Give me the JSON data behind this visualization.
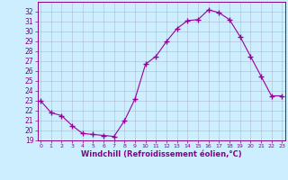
{
  "x": [
    0,
    1,
    2,
    3,
    4,
    5,
    6,
    7,
    8,
    9,
    10,
    11,
    12,
    13,
    14,
    15,
    16,
    17,
    18,
    19,
    20,
    21,
    22,
    23
  ],
  "y": [
    23.0,
    21.8,
    21.5,
    20.5,
    19.7,
    19.6,
    19.5,
    19.4,
    21.0,
    23.2,
    26.7,
    27.5,
    29.0,
    30.3,
    31.1,
    31.2,
    32.2,
    31.9,
    31.2,
    29.5,
    27.5,
    25.5,
    23.5,
    23.5
  ],
  "ylim": [
    19,
    33
  ],
  "yticks": [
    19,
    20,
    21,
    22,
    23,
    24,
    25,
    26,
    27,
    28,
    29,
    30,
    31,
    32
  ],
  "xticks": [
    0,
    1,
    2,
    3,
    4,
    5,
    6,
    7,
    8,
    9,
    10,
    11,
    12,
    13,
    14,
    15,
    16,
    17,
    18,
    19,
    20,
    21,
    22,
    23
  ],
  "xlabel": "Windchill (Refroidissement éolien,°C)",
  "line_color": "#990099",
  "marker": "+",
  "marker_size": 4,
  "bg_color": "#cceeff",
  "grid_color": "#aabbcc",
  "tick_color": "#880088",
  "label_color": "#880088"
}
